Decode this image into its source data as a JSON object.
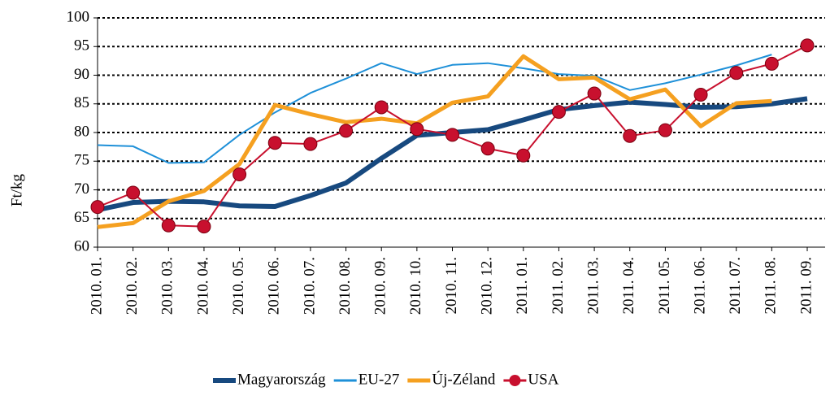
{
  "chart_data": {
    "type": "line",
    "ylabel": "Ft/kg",
    "categories": [
      "2010. 01.",
      "2010. 02.",
      "2010. 03.",
      "2010. 04.",
      "2010. 05.",
      "2010. 06.",
      "2010. 07.",
      "2010. 08.",
      "2010. 09.",
      "2010. 10.",
      "2010. 11.",
      "2010. 12.",
      "2011. 01.",
      "2011. 02.",
      "2011. 03.",
      "2011. 04.",
      "2011. 05.",
      "2011. 06.",
      "2011. 07.",
      "2011. 08.",
      "2011. 09."
    ],
    "series": [
      {
        "name": "Magyarország",
        "color": "#17497f",
        "values": [
          66.5,
          67.8,
          68,
          67.9,
          67.2,
          67.1,
          69,
          71.2,
          75.5,
          79.5,
          80,
          80.5,
          82.2,
          84,
          84.7,
          85.3,
          84.9,
          84.4,
          84.5,
          85,
          85.9
        ]
      },
      {
        "name": "EU-27",
        "color": "#1e90d8",
        "values": [
          77.8,
          77.6,
          74.7,
          74.8,
          79.6,
          83.5,
          86.9,
          89.4,
          92.1,
          90.2,
          91.8,
          92.1,
          91.2,
          90.2,
          89.9,
          87.4,
          88.6,
          90.1,
          91.7,
          93.6,
          null
        ]
      },
      {
        "name": "Új-Zéland",
        "color": "#f5a020",
        "values": [
          63.5,
          64.2,
          68,
          69.8,
          74.5,
          84.8,
          83.2,
          81.8,
          82.4,
          81.6,
          85.2,
          86.3,
          93.3,
          89.3,
          89.6,
          85.8,
          87.5,
          81.1,
          85.1,
          85.5,
          null
        ]
      },
      {
        "name": "USA",
        "color": "#c8102e",
        "values": [
          67,
          69.5,
          63.8,
          63.6,
          72.7,
          78.2,
          78,
          80.3,
          84.4,
          80.6,
          79.6,
          77.2,
          76,
          83.6,
          86.8,
          79.4,
          80.4,
          86.6,
          90.4,
          92,
          95.2
        ]
      }
    ],
    "ylim": [
      60,
      100
    ],
    "yticks": [
      60,
      65,
      70,
      75,
      80,
      85,
      90,
      95,
      100
    ],
    "grid": true,
    "legend": "bottom"
  }
}
